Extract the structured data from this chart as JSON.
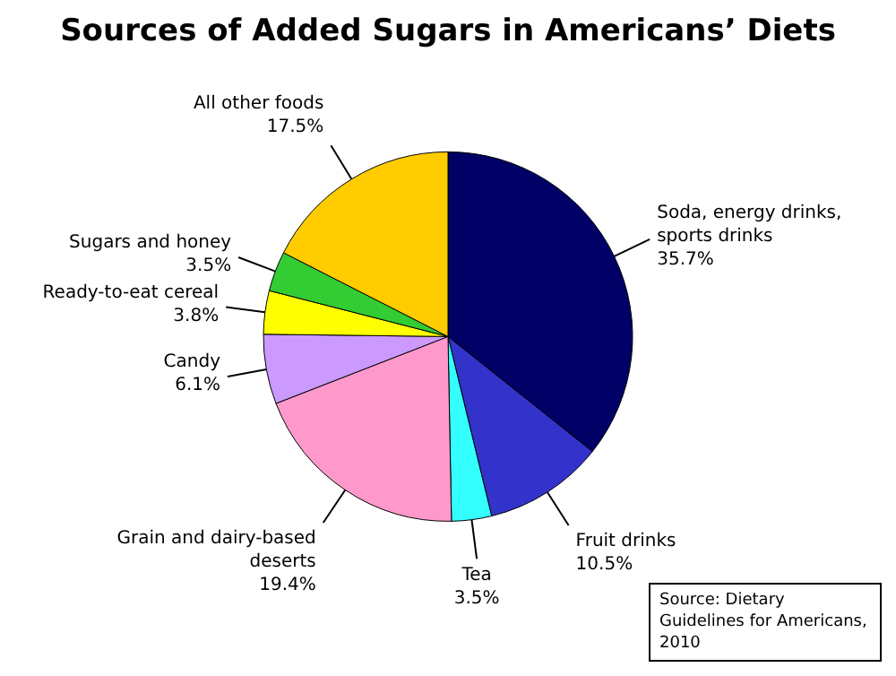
{
  "chart_data": {
    "type": "pie",
    "title": "Sources of Added Sugars in Americans’ Diets",
    "categories": [
      "Soda, energy drinks, sports drinks",
      "Fruit drinks",
      "Tea",
      "Grain and dairy-based deserts",
      "Candy",
      "Ready-to-eat cereal",
      "Sugars and honey",
      "All other foods"
    ],
    "values": [
      35.7,
      10.5,
      3.5,
      19.4,
      6.1,
      3.8,
      3.5,
      17.5
    ],
    "value_labels": [
      "35.7%",
      "10.5%",
      "3.5%",
      "19.4%",
      "6.1%",
      "3.8%",
      "3.5%",
      "17.5%"
    ],
    "colors": [
      "#000066",
      "#3333cc",
      "#33ffff",
      "#ff99cc",
      "#cc99ff",
      "#ffff00",
      "#33cc33",
      "#ffcc00"
    ],
    "legend": false,
    "annotations": [
      "Source: Dietary Guidelines for Americans, 2010"
    ]
  }
}
